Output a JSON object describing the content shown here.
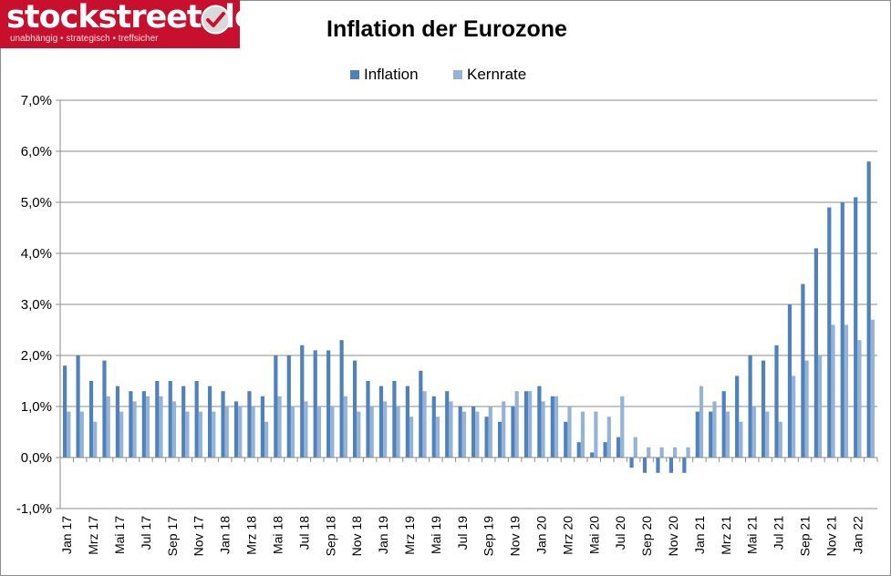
{
  "logo": {
    "text": "stockstreet.de",
    "tagline": "unabhängig • strategisch • treffsicher",
    "brand_color": "#c8102e"
  },
  "chart_data": {
    "type": "bar",
    "title": "Inflation der Eurozone",
    "xlabel": "",
    "ylabel": "",
    "ylim": [
      -1,
      7
    ],
    "y_ticks": [
      -1,
      0,
      1,
      2,
      3,
      4,
      5,
      6,
      7
    ],
    "y_tick_labels": [
      "-1,0%",
      "0,0%",
      "1,0%",
      "2,0%",
      "3,0%",
      "4,0%",
      "5,0%",
      "6,0%",
      "7,0%"
    ],
    "grid": true,
    "legend_position": "top-center",
    "categories": [
      "Jan 17",
      "Feb 17",
      "Mrz 17",
      "Apr 17",
      "Mai 17",
      "Jun 17",
      "Jul 17",
      "Aug 17",
      "Sep 17",
      "Okt 17",
      "Nov 17",
      "Dez 17",
      "Jan 18",
      "Feb 18",
      "Mrz 18",
      "Apr 18",
      "Mai 18",
      "Jun 18",
      "Jul 18",
      "Aug 18",
      "Sep 18",
      "Okt 18",
      "Nov 18",
      "Dez 18",
      "Jan 19",
      "Feb 19",
      "Mrz 19",
      "Apr 19",
      "Mai 19",
      "Jun 19",
      "Jul 19",
      "Aug 19",
      "Sep 19",
      "Okt 19",
      "Nov 19",
      "Dez 19",
      "Jan 20",
      "Feb 20",
      "Mrz 20",
      "Apr 20",
      "Mai 20",
      "Jun 20",
      "Jul 20",
      "Aug 20",
      "Sep 20",
      "Okt 20",
      "Nov 20",
      "Dez 20",
      "Jan 21",
      "Feb 21",
      "Mrz 21",
      "Apr 21",
      "Mai 21",
      "Jun 21",
      "Jul 21",
      "Aug 21",
      "Sep 21",
      "Okt 21",
      "Nov 21",
      "Dez 21",
      "Jan 22",
      "Feb 22"
    ],
    "x_tick_labels": [
      "Jan 17",
      "Mrz 17",
      "Mai 17",
      "Jul 17",
      "Sep 17",
      "Nov 17",
      "Jan 18",
      "Mrz 18",
      "Mai 18",
      "Jul 18",
      "Sep 18",
      "Nov 18",
      "Jan 19",
      "Mrz 19",
      "Mai 19",
      "Jul 19",
      "Sep 19",
      "Nov 19",
      "Jan 20",
      "Mrz 20",
      "Mai 20",
      "Jul 20",
      "Sep 20",
      "Nov 20",
      "Jan 21",
      "Mrz 21",
      "Mai 21",
      "Jul 21",
      "Sep 21",
      "Nov 21",
      "Jan 22"
    ],
    "series": [
      {
        "name": "Inflation",
        "color": "#4f81bd",
        "values": [
          1.8,
          2.0,
          1.5,
          1.9,
          1.4,
          1.3,
          1.3,
          1.5,
          1.5,
          1.4,
          1.5,
          1.4,
          1.3,
          1.1,
          1.3,
          1.2,
          2.0,
          2.0,
          2.2,
          2.1,
          2.1,
          2.3,
          1.9,
          1.5,
          1.4,
          1.5,
          1.4,
          1.7,
          1.2,
          1.3,
          1.0,
          1.0,
          0.8,
          0.7,
          1.0,
          1.3,
          1.4,
          1.2,
          0.7,
          0.3,
          0.1,
          0.3,
          0.4,
          -0.2,
          -0.3,
          -0.3,
          -0.3,
          -0.3,
          0.9,
          0.9,
          1.3,
          1.6,
          2.0,
          1.9,
          2.2,
          3.0,
          3.4,
          4.1,
          4.9,
          5.0,
          5.1,
          5.8
        ]
      },
      {
        "name": "Kernrate",
        "color": "#95b3d7",
        "values": [
          0.9,
          0.9,
          0.7,
          1.2,
          0.9,
          1.1,
          1.2,
          1.2,
          1.1,
          0.9,
          0.9,
          0.9,
          1.0,
          1.0,
          1.0,
          0.7,
          1.2,
          1.0,
          1.1,
          1.0,
          1.0,
          1.2,
          0.9,
          1.0,
          1.1,
          1.0,
          0.8,
          1.3,
          0.8,
          1.1,
          0.9,
          0.9,
          1.0,
          1.1,
          1.3,
          1.3,
          1.1,
          1.2,
          1.0,
          0.9,
          0.9,
          0.8,
          1.2,
          0.4,
          0.2,
          0.2,
          0.2,
          0.2,
          1.4,
          1.1,
          0.9,
          0.7,
          1.0,
          0.9,
          0.7,
          1.6,
          1.9,
          2.0,
          2.6,
          2.6,
          2.3,
          2.7
        ]
      }
    ]
  }
}
